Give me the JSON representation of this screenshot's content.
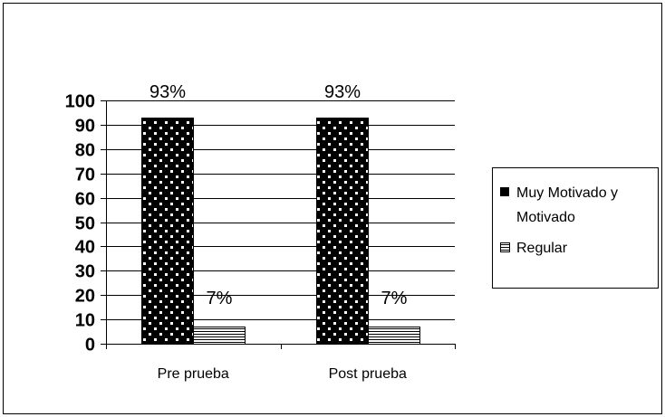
{
  "chart_data": {
    "type": "bar",
    "categories": [
      "Pre prueba",
      "Post prueba"
    ],
    "series": [
      {
        "name": "Muy Motivado y Motivado",
        "values": [
          93,
          93
        ],
        "labels": [
          "93%",
          "93%"
        ],
        "pattern": "black-dotted"
      },
      {
        "name": "Regular",
        "values": [
          7,
          7
        ],
        "labels": [
          "7%",
          "7%"
        ],
        "pattern": "horizontal-lines"
      }
    ],
    "ylim": [
      0,
      100
    ],
    "yticks": [
      0,
      10,
      20,
      30,
      40,
      50,
      60,
      70,
      80,
      90,
      100
    ],
    "grid": true,
    "legend_position": "right",
    "legend_labels": {
      "series1_line1": "Muy Motivado y",
      "series1_line2": "Motivado",
      "series2": "Regular"
    },
    "colors": {
      "bar_fill": "#000000",
      "bar_dots": "#ffffff",
      "line": "#000000",
      "background": "#ffffff"
    }
  }
}
